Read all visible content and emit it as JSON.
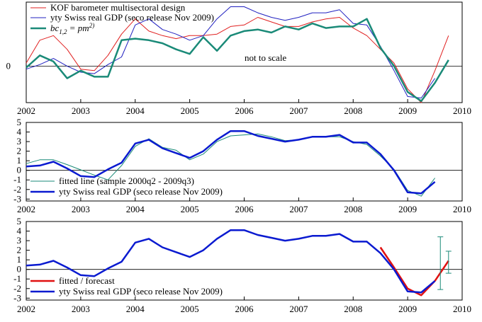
{
  "chart_data": [
    {
      "type": "line",
      "xlim": [
        2002,
        2010
      ],
      "ylim": [
        -1.2,
        2.1
      ],
      "x_ticks": [
        "2002",
        "2003",
        "2004",
        "2005",
        "2006",
        "2007",
        "2008",
        "2009",
        "2010"
      ],
      "y_ticks": [
        "0"
      ],
      "annotation": "not to scale",
      "legend_placement": "top-left",
      "series": [
        {
          "name": "KOF barometer multisectoral design",
          "color": "#e02020",
          "x": [
            2002.0,
            2002.25,
            2002.5,
            2002.75,
            2003.0,
            2003.25,
            2003.5,
            2003.75,
            2004.0,
            2004.25,
            2004.5,
            2004.75,
            2005.0,
            2005.25,
            2005.5,
            2005.75,
            2006.0,
            2006.25,
            2006.5,
            2006.75,
            2007.0,
            2007.25,
            2007.5,
            2007.75,
            2008.0,
            2008.25,
            2008.5,
            2008.75,
            2009.0,
            2009.25,
            2009.5,
            2009.75
          ],
          "values": [
            0.1,
            0.85,
            1.0,
            0.55,
            -0.1,
            -0.15,
            0.35,
            1.05,
            1.55,
            1.15,
            1.0,
            0.9,
            1.0,
            1.0,
            1.05,
            1.3,
            1.35,
            1.6,
            1.45,
            1.3,
            1.3,
            1.45,
            1.55,
            1.6,
            1.25,
            1.0,
            0.55,
            0.1,
            -0.75,
            -1.2,
            -0.15,
            1.0
          ]
        },
        {
          "name": "yty Swiss real GDP (seco release Nov 2009)",
          "color": "#2020c0",
          "x": [
            2002.0,
            2002.25,
            2002.5,
            2002.75,
            2003.0,
            2003.25,
            2003.5,
            2003.75,
            2004.0,
            2004.25,
            2004.5,
            2004.75,
            2005.0,
            2005.25,
            2005.5,
            2005.75,
            2006.0,
            2006.25,
            2006.5,
            2006.75,
            2007.0,
            2007.25,
            2007.5,
            2007.75,
            2008.0,
            2008.25,
            2008.5,
            2008.75,
            2009.0,
            2009.25,
            2009.5
          ],
          "values": [
            -0.1,
            0.05,
            0.25,
            0.0,
            -0.2,
            -0.25,
            0.05,
            0.3,
            1.35,
            1.55,
            1.2,
            1.05,
            0.85,
            1.0,
            1.55,
            1.95,
            1.95,
            1.75,
            1.6,
            1.5,
            1.6,
            1.75,
            1.75,
            1.85,
            1.4,
            1.35,
            0.65,
            -0.15,
            -1.0,
            -1.05,
            -0.4
          ]
        },
        {
          "name": "bc",
          "color": "#1a8a78",
          "x": [
            2002.0,
            2002.25,
            2002.5,
            2002.75,
            2003.0,
            2003.25,
            2003.5,
            2003.75,
            2004.0,
            2004.25,
            2004.5,
            2004.75,
            2005.0,
            2005.25,
            2005.5,
            2005.75,
            2006.0,
            2006.25,
            2006.5,
            2006.75,
            2007.0,
            2007.25,
            2007.5,
            2007.75,
            2008.0,
            2008.25,
            2008.5,
            2008.75,
            2009.0,
            2009.25,
            2009.5,
            2009.75
          ],
          "values": [
            -0.05,
            0.35,
            0.15,
            -0.4,
            -0.15,
            -0.35,
            -0.35,
            0.85,
            0.9,
            0.85,
            0.75,
            0.55,
            0.4,
            0.95,
            0.5,
            1.0,
            1.15,
            1.2,
            1.1,
            1.3,
            1.2,
            1.4,
            1.25,
            1.3,
            1.3,
            1.55,
            0.6,
            0.0,
            -0.85,
            -1.15,
            -0.55,
            0.2
          ]
        }
      ]
    },
    {
      "type": "line",
      "xlim": [
        2002,
        2010
      ],
      "ylim": [
        -3.2,
        5.0
      ],
      "x_ticks": [
        "2002",
        "2003",
        "2004",
        "2005",
        "2006",
        "2007",
        "2008",
        "2009",
        "2010"
      ],
      "y_ticks": [
        "-3",
        "-2",
        "-1",
        "0",
        "1",
        "2",
        "3",
        "4",
        "5"
      ],
      "legend_placement": "bottom-left",
      "series": [
        {
          "name": "fitted line (sample 2000q2 - 2009q3)",
          "color": "#1a8a78",
          "x": [
            2002.0,
            2002.25,
            2002.5,
            2002.75,
            2003.0,
            2003.25,
            2003.5,
            2003.75,
            2004.0,
            2004.25,
            2004.5,
            2004.75,
            2005.0,
            2005.25,
            2005.5,
            2005.75,
            2006.0,
            2006.25,
            2006.5,
            2006.75,
            2007.0,
            2007.25,
            2007.5,
            2007.75,
            2008.0,
            2008.25,
            2008.5,
            2008.75,
            2009.0,
            2009.25,
            2009.5
          ],
          "values": [
            0.7,
            1.1,
            1.1,
            0.6,
            0.05,
            -0.5,
            -1.0,
            0.5,
            2.5,
            3.3,
            2.4,
            2.1,
            1.1,
            1.7,
            3.0,
            3.6,
            3.7,
            3.8,
            3.5,
            3.1,
            3.2,
            3.5,
            3.5,
            3.5,
            3.0,
            2.7,
            1.5,
            0.1,
            -2.1,
            -2.7,
            -0.8
          ]
        },
        {
          "name": "yty Swiss real GDP (seco release Nov 2009)",
          "color": "#0a1ad0",
          "x": [
            2002.0,
            2002.25,
            2002.5,
            2002.75,
            2003.0,
            2003.25,
            2003.5,
            2003.75,
            2004.0,
            2004.25,
            2004.5,
            2004.75,
            2005.0,
            2005.25,
            2005.5,
            2005.75,
            2006.0,
            2006.25,
            2006.5,
            2006.75,
            2007.0,
            2007.25,
            2007.5,
            2007.75,
            2008.0,
            2008.25,
            2008.5,
            2008.75,
            2009.0,
            2009.25,
            2009.5
          ],
          "values": [
            0.4,
            0.5,
            0.9,
            0.2,
            -0.6,
            -0.7,
            0.1,
            0.8,
            2.8,
            3.2,
            2.3,
            1.8,
            1.3,
            2.0,
            3.2,
            4.1,
            4.1,
            3.6,
            3.3,
            3.0,
            3.2,
            3.5,
            3.5,
            3.7,
            2.9,
            2.9,
            1.7,
            0.0,
            -2.3,
            -2.4,
            -1.2
          ]
        }
      ]
    },
    {
      "type": "line",
      "xlim": [
        2002,
        2010
      ],
      "ylim": [
        -3.2,
        5.0
      ],
      "x_ticks": [
        "2002",
        "2003",
        "2004",
        "2005",
        "2006",
        "2007",
        "2008",
        "2009",
        "2010"
      ],
      "y_ticks": [
        "-3",
        "-2",
        "-1",
        "0",
        "1",
        "2",
        "3",
        "4",
        "5"
      ],
      "legend_placement": "bottom-left",
      "series": [
        {
          "name": "fitted / forecast",
          "color": "#e01010",
          "x": [
            2008.5,
            2008.75,
            2009.0,
            2009.25,
            2009.5,
            2009.75
          ],
          "values": [
            2.3,
            0.2,
            -2.0,
            -2.7,
            -1.2,
            0.9
          ]
        },
        {
          "name": "yty Swiss real GDP (seco release Nov 2009)",
          "color": "#0a1ad0",
          "x": [
            2002.0,
            2002.25,
            2002.5,
            2002.75,
            2003.0,
            2003.25,
            2003.5,
            2003.75,
            2004.0,
            2004.25,
            2004.5,
            2004.75,
            2005.0,
            2005.25,
            2005.5,
            2005.75,
            2006.0,
            2006.25,
            2006.5,
            2006.75,
            2007.0,
            2007.25,
            2007.5,
            2007.75,
            2008.0,
            2008.25,
            2008.5,
            2008.75,
            2009.0,
            2009.25,
            2009.5
          ],
          "values": [
            0.4,
            0.5,
            0.9,
            0.2,
            -0.6,
            -0.7,
            0.1,
            0.8,
            2.8,
            3.2,
            2.3,
            1.8,
            1.3,
            2.0,
            3.2,
            4.1,
            4.1,
            3.6,
            3.3,
            3.0,
            3.2,
            3.5,
            3.5,
            3.7,
            2.9,
            2.9,
            1.7,
            0.0,
            -2.3,
            -2.4,
            -1.2
          ]
        }
      ],
      "error_bars": [
        {
          "x": 2009.6,
          "low": -2.1,
          "high": 3.4,
          "color": "#1a8a78"
        },
        {
          "x": 2009.75,
          "low": -0.4,
          "high": 1.9,
          "color": "#1a8a78"
        }
      ]
    }
  ]
}
